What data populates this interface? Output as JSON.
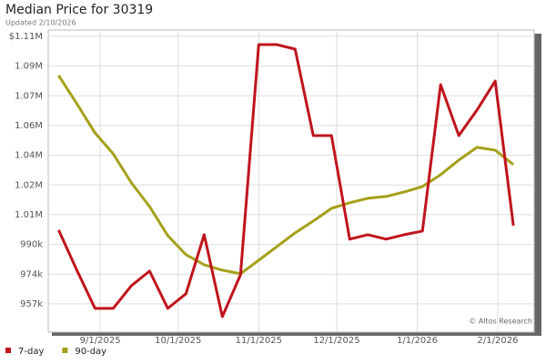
{
  "chart_data": {
    "type": "line",
    "title": "Median Price for 30319",
    "subtitle": "Updated 2/10/2026",
    "annotation": "© Altos Research",
    "x": [
      "2025-08-16",
      "2025-08-23",
      "2025-08-30",
      "2025-09-06",
      "2025-09-13",
      "2025-09-20",
      "2025-09-27",
      "2025-10-04",
      "2025-10-11",
      "2025-10-18",
      "2025-10-25",
      "2025-11-01",
      "2025-11-08",
      "2025-11-15",
      "2025-11-22",
      "2025-11-29",
      "2025-12-06",
      "2025-12-13",
      "2025-12-20",
      "2025-12-27",
      "2026-01-03",
      "2026-01-10",
      "2026-01-17",
      "2026-01-24",
      "2026-01-31",
      "2026-02-07"
    ],
    "series": [
      {
        "name": "7-day",
        "color": "#c0141c",
        "values": [
          998000,
          975700,
          954500,
          954500,
          967100,
          975200,
          954500,
          962600,
          995400,
          949900,
          973200,
          1100900,
          1100900,
          1098400,
          1050400,
          1050400,
          992900,
          995400,
          992900,
          995400,
          997400,
          1078700,
          1050400,
          1064600,
          1080700,
          1000400
        ]
      },
      {
        "name": "90-day",
        "color": "#a5a019",
        "values": [
          1083800,
          1068100,
          1051900,
          1040300,
          1024200,
          1011000,
          994900,
          984300,
          978700,
          975700,
          973700,
          981200,
          988800,
          996400,
          1003000,
          1010000,
          1013100,
          1015600,
          1016600,
          1019100,
          1022100,
          1028700,
          1036800,
          1043900,
          1042300,
          1034300
        ]
      }
    ],
    "xlim": [
      "2025-08-12",
      "2026-02-15"
    ],
    "xticks": [
      {
        "value": "2025-09-01",
        "label": "9/1/2025"
      },
      {
        "value": "2025-10-01",
        "label": "10/1/2025"
      },
      {
        "value": "2025-11-01",
        "label": "11/1/2025"
      },
      {
        "value": "2025-12-01",
        "label": "12/1/2025"
      },
      {
        "value": "2026-01-01",
        "label": "1/1/2026"
      },
      {
        "value": "2026-02-01",
        "label": "2/1/2026"
      }
    ],
    "ylim": [
      941300,
      1109000
    ],
    "yticks": [
      {
        "value": 957000,
        "label": "957k"
      },
      {
        "value": 973500,
        "label": "974k"
      },
      {
        "value": 990000,
        "label": "990k"
      },
      {
        "value": 1006500,
        "label": "1.01M"
      },
      {
        "value": 1023000,
        "label": "1.02M"
      },
      {
        "value": 1039500,
        "label": "1.04M"
      },
      {
        "value": 1056000,
        "label": "1.06M"
      },
      {
        "value": 1072500,
        "label": "1.07M"
      },
      {
        "value": 1089000,
        "label": "1.09M"
      },
      {
        "value": 1105500,
        "label": "$1.11M"
      }
    ],
    "grid": true
  }
}
